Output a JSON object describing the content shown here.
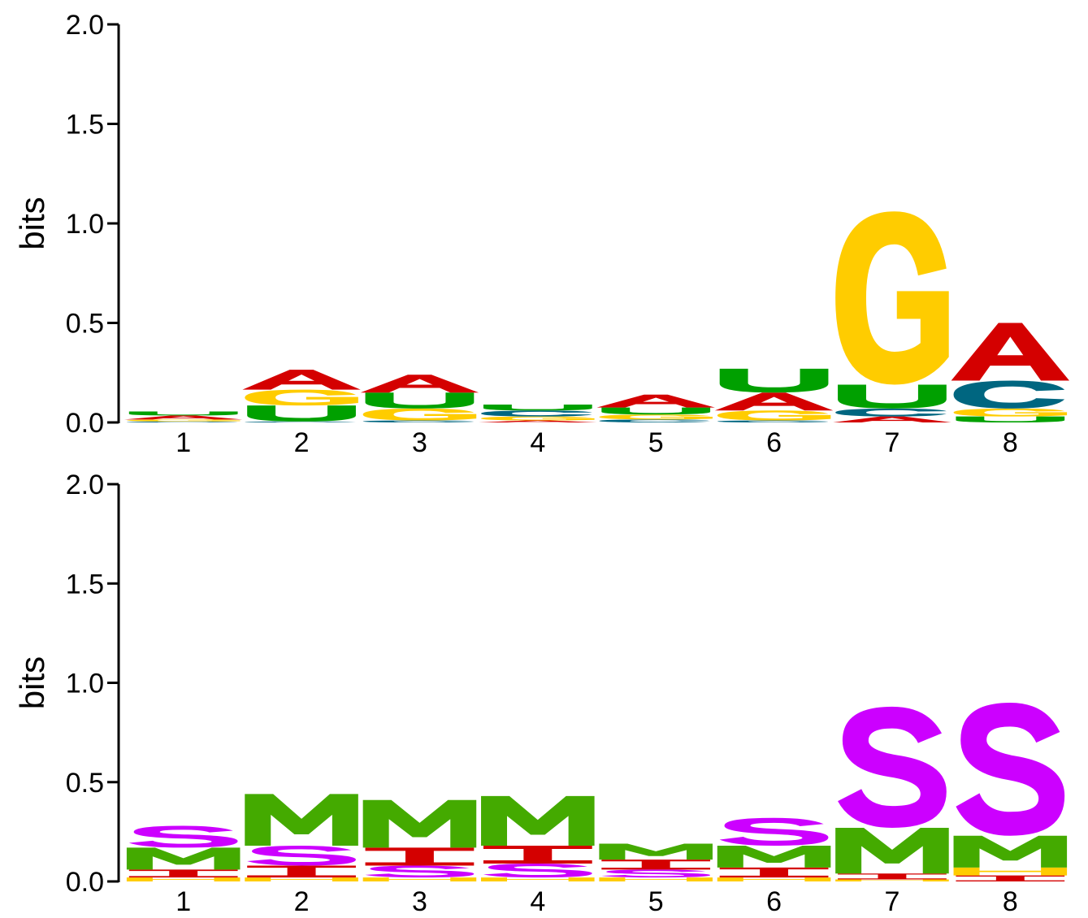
{
  "chart_data": [
    {
      "type": "sequence-logo",
      "ylabel": "bits",
      "ylim": [
        0,
        2.0
      ],
      "yticks": [
        "0.0",
        "0.5",
        "1.0",
        "1.5",
        "2.0"
      ],
      "positions": [
        "1",
        "2",
        "3",
        "4",
        "5",
        "6",
        "7",
        "8"
      ],
      "letter_colors": {
        "A": "#d40000",
        "C": "#006680",
        "G": "#ffcc00",
        "U": "#00a000"
      },
      "stacks": [
        [
          {
            "letter": "C",
            "bits": 0.005
          },
          {
            "letter": "G",
            "bits": 0.01
          },
          {
            "letter": "A",
            "bits": 0.02
          },
          {
            "letter": "U",
            "bits": 0.02
          }
        ],
        [
          {
            "letter": "C",
            "bits": 0.005
          },
          {
            "letter": "U",
            "bits": 0.08
          },
          {
            "letter": "G",
            "bits": 0.08
          },
          {
            "letter": "A",
            "bits": 0.1
          }
        ],
        [
          {
            "letter": "C",
            "bits": 0.01
          },
          {
            "letter": "G",
            "bits": 0.06
          },
          {
            "letter": "U",
            "bits": 0.08
          },
          {
            "letter": "A",
            "bits": 0.09
          }
        ],
        [
          {
            "letter": "A",
            "bits": 0.01
          },
          {
            "letter": "G",
            "bits": 0.02
          },
          {
            "letter": "C",
            "bits": 0.03
          },
          {
            "letter": "U",
            "bits": 0.03
          }
        ],
        [
          {
            "letter": "C",
            "bits": 0.015
          },
          {
            "letter": "G",
            "bits": 0.025
          },
          {
            "letter": "U",
            "bits": 0.035
          },
          {
            "letter": "A",
            "bits": 0.065
          }
        ],
        [
          {
            "letter": "C",
            "bits": 0.01
          },
          {
            "letter": "G",
            "bits": 0.05
          },
          {
            "letter": "A",
            "bits": 0.09
          },
          {
            "letter": "U",
            "bits": 0.12
          }
        ],
        [
          {
            "letter": "A",
            "bits": 0.03
          },
          {
            "letter": "C",
            "bits": 0.04
          },
          {
            "letter": "U",
            "bits": 0.12
          },
          {
            "letter": "G",
            "bits": 0.87
          }
        ],
        [
          {
            "letter": "U",
            "bits": 0.03
          },
          {
            "letter": "G",
            "bits": 0.04
          },
          {
            "letter": "C",
            "bits": 0.14
          },
          {
            "letter": "A",
            "bits": 0.29
          }
        ]
      ]
    },
    {
      "type": "sequence-logo",
      "ylabel": "bits",
      "ylim": [
        0,
        2.0
      ],
      "yticks": [
        "0.0",
        "0.5",
        "1.0",
        "1.5",
        "2.0"
      ],
      "positions": [
        "1",
        "2",
        "3",
        "4",
        "5",
        "6",
        "7",
        "8"
      ],
      "letter_colors": {
        "M": "#44aa00",
        "S": "#cc00ff",
        "H": "#ffcc00",
        "I": "#d40000"
      },
      "stacks": [
        [
          {
            "letter": "H",
            "bits": 0.02
          },
          {
            "letter": "I",
            "bits": 0.04
          },
          {
            "letter": "M",
            "bits": 0.11
          },
          {
            "letter": "S",
            "bits": 0.11
          }
        ],
        [
          {
            "letter": "H",
            "bits": 0.02
          },
          {
            "letter": "I",
            "bits": 0.06
          },
          {
            "letter": "S",
            "bits": 0.1
          },
          {
            "letter": "M",
            "bits": 0.26
          }
        ],
        [
          {
            "letter": "H",
            "bits": 0.02
          },
          {
            "letter": "S",
            "bits": 0.06
          },
          {
            "letter": "I",
            "bits": 0.09
          },
          {
            "letter": "M",
            "bits": 0.24
          }
        ],
        [
          {
            "letter": "H",
            "bits": 0.02
          },
          {
            "letter": "S",
            "bits": 0.07
          },
          {
            "letter": "I",
            "bits": 0.09
          },
          {
            "letter": "M",
            "bits": 0.25
          }
        ],
        [
          {
            "letter": "H",
            "bits": 0.02
          },
          {
            "letter": "S",
            "bits": 0.04
          },
          {
            "letter": "I",
            "bits": 0.05
          },
          {
            "letter": "M",
            "bits": 0.08
          }
        ],
        [
          {
            "letter": "H",
            "bits": 0.02
          },
          {
            "letter": "I",
            "bits": 0.05
          },
          {
            "letter": "M",
            "bits": 0.11
          },
          {
            "letter": "S",
            "bits": 0.14
          }
        ],
        [
          {
            "letter": "H",
            "bits": 0.01
          },
          {
            "letter": "I",
            "bits": 0.03
          },
          {
            "letter": "M",
            "bits": 0.23
          },
          {
            "letter": "S",
            "bits": 0.61
          }
        ],
        [
          {
            "letter": "I",
            "bits": 0.03
          },
          {
            "letter": "H",
            "bits": 0.04
          },
          {
            "letter": "M",
            "bits": 0.16
          },
          {
            "letter": "S",
            "bits": 0.67
          }
        ]
      ]
    }
  ]
}
